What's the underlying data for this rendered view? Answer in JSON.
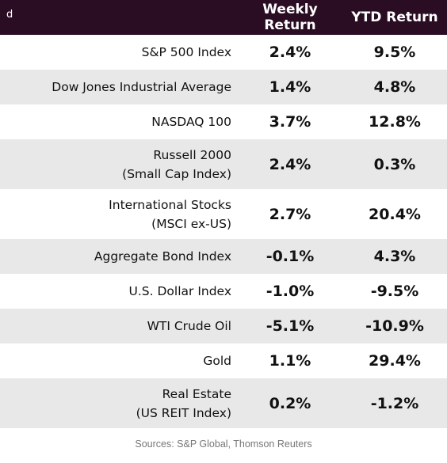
{
  "header": {
    "corner": "d",
    "weekly": "Weekly Return",
    "ytd": "YTD Return"
  },
  "rows": [
    {
      "label1": "S&P 500 Index",
      "label2": "",
      "weekly": "2.4%",
      "ytd": "9.5%"
    },
    {
      "label1": "Dow Jones Industrial Average",
      "label2": "",
      "weekly": "1.4%",
      "ytd": "4.8%"
    },
    {
      "label1": "NASDAQ 100",
      "label2": "",
      "weekly": "3.7%",
      "ytd": "12.8%"
    },
    {
      "label1": "Russell 2000",
      "label2": "(Small Cap Index)",
      "weekly": "2.4%",
      "ytd": "0.3%"
    },
    {
      "label1": "International Stocks",
      "label2": "(MSCI ex-US)",
      "weekly": "2.7%",
      "ytd": "20.4%"
    },
    {
      "label1": "Aggregate Bond Index",
      "label2": "",
      "weekly": "-0.1%",
      "ytd": "4.3%"
    },
    {
      "label1": "U.S. Dollar Index",
      "label2": "",
      "weekly": "-1.0%",
      "ytd": "-9.5%"
    },
    {
      "label1": "WTI Crude Oil",
      "label2": "",
      "weekly": "-5.1%",
      "ytd": "-10.9%"
    },
    {
      "label1": "Gold",
      "label2": "",
      "weekly": "1.1%",
      "ytd": "29.4%"
    },
    {
      "label1": "Real Estate",
      "label2": "(US REIT Index)",
      "weekly": "0.2%",
      "ytd": "-1.2%"
    }
  ],
  "footer": "Sources: S&P Global, Thomson Reuters",
  "colors": {
    "header_bg": "#2a0d22",
    "alt_row": "#e8e8e8"
  }
}
